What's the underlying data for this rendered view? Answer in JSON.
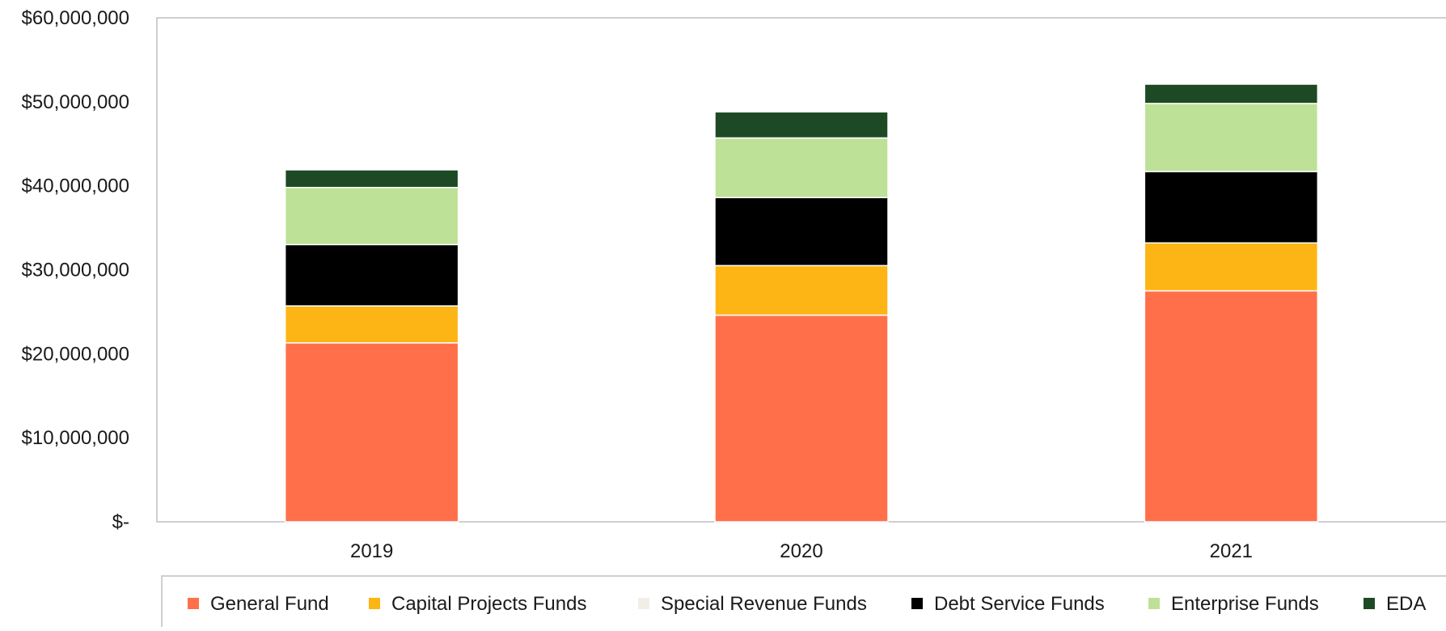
{
  "chart_data": {
    "type": "bar",
    "stacked": true,
    "categories": [
      "2019",
      "2020",
      "2021"
    ],
    "series": [
      {
        "name": "General Fund",
        "color": "#ff704a",
        "values": [
          21300000,
          24600000,
          27500000
        ]
      },
      {
        "name": "Capital Projects Funds",
        "color": "#fdb515",
        "values": [
          4400000,
          5900000,
          5700000
        ]
      },
      {
        "name": "Special Revenue Funds",
        "color": "#f1efe5",
        "values": [
          0,
          0,
          0
        ]
      },
      {
        "name": "Debt Service Funds",
        "color": "#000000",
        "values": [
          7300000,
          8100000,
          8500000
        ]
      },
      {
        "name": "Enterprise Funds",
        "color": "#bde196",
        "values": [
          6800000,
          7100000,
          8100000
        ]
      },
      {
        "name": "EDA",
        "color": "#1d4a25",
        "values": [
          2100000,
          3100000,
          2300000
        ]
      }
    ],
    "ylim": [
      0,
      60000000
    ],
    "yticks": [
      {
        "value": 0,
        "label": "$-"
      },
      {
        "value": 10000000,
        "label": "$10,000,000"
      },
      {
        "value": 20000000,
        "label": "$20,000,000"
      },
      {
        "value": 30000000,
        "label": "$30,000,000"
      },
      {
        "value": 40000000,
        "label": "$40,000,000"
      },
      {
        "value": 50000000,
        "label": "$50,000,000"
      },
      {
        "value": 60000000,
        "label": "$60,000,000"
      }
    ],
    "grid": false,
    "legend_position": "bottom"
  }
}
